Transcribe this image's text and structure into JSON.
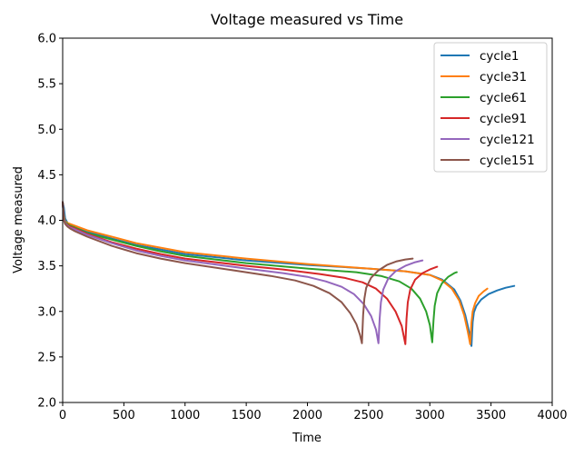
{
  "chart_data": {
    "type": "line",
    "title": "Voltage measured vs Time",
    "xlabel": "Time",
    "ylabel": "Voltage measured",
    "xlim": [
      0,
      4000
    ],
    "ylim": [
      2.0,
      6.0
    ],
    "xticks": [
      0,
      500,
      1000,
      1500,
      2000,
      2500,
      3000,
      3500,
      4000
    ],
    "xtick_labels": [
      "0",
      "500",
      "1000",
      "1500",
      "2000",
      "2500",
      "3000",
      "3500",
      "4000"
    ],
    "yticks": [
      2.0,
      2.5,
      3.0,
      3.5,
      4.0,
      4.5,
      5.0,
      5.5,
      6.0
    ],
    "ytick_labels": [
      "2.0",
      "2.5",
      "3.0",
      "3.5",
      "4.0",
      "4.5",
      "5.0",
      "5.5",
      "6.0"
    ],
    "grid": false,
    "legend_position": "top-right",
    "series": [
      {
        "name": "cycle1",
        "color": "#1f77b4",
        "x": [
          0,
          10,
          20,
          40,
          60,
          100,
          200,
          400,
          600,
          800,
          1000,
          1500,
          2000,
          2500,
          2800,
          3000,
          3100,
          3200,
          3250,
          3290,
          3320,
          3340,
          3350,
          3360,
          3380,
          3420,
          3480,
          3550,
          3620,
          3690
        ],
        "y": [
          4.2,
          4.14,
          4.02,
          3.97,
          3.95,
          3.93,
          3.88,
          3.8,
          3.73,
          3.68,
          3.63,
          3.56,
          3.51,
          3.47,
          3.44,
          3.4,
          3.35,
          3.24,
          3.12,
          2.96,
          2.78,
          2.62,
          2.88,
          2.99,
          3.06,
          3.13,
          3.19,
          3.23,
          3.26,
          3.28
        ]
      },
      {
        "name": "cycle31",
        "color": "#ff7f0e",
        "x": [
          0,
          10,
          20,
          40,
          60,
          100,
          200,
          400,
          600,
          800,
          1000,
          1500,
          2000,
          2500,
          2800,
          3000,
          3100,
          3180,
          3240,
          3280,
          3310,
          3330,
          3340,
          3350,
          3370,
          3400,
          3440,
          3470
        ],
        "y": [
          4.2,
          4.05,
          3.99,
          3.97,
          3.96,
          3.94,
          3.89,
          3.82,
          3.75,
          3.7,
          3.65,
          3.58,
          3.52,
          3.47,
          3.44,
          3.4,
          3.34,
          3.25,
          3.12,
          2.96,
          2.78,
          2.64,
          2.88,
          3.0,
          3.09,
          3.17,
          3.22,
          3.25
        ]
      },
      {
        "name": "cycle61",
        "color": "#2ca02c",
        "x": [
          0,
          10,
          20,
          40,
          60,
          100,
          200,
          400,
          600,
          800,
          1000,
          1500,
          2000,
          2400,
          2600,
          2750,
          2850,
          2920,
          2970,
          3000,
          3020,
          3030,
          3040,
          3060,
          3100,
          3150,
          3200,
          3220
        ],
        "y": [
          4.2,
          4.04,
          3.98,
          3.96,
          3.94,
          3.92,
          3.86,
          3.79,
          3.72,
          3.66,
          3.61,
          3.53,
          3.47,
          3.43,
          3.39,
          3.33,
          3.25,
          3.14,
          3.0,
          2.85,
          2.66,
          2.9,
          3.06,
          3.2,
          3.31,
          3.38,
          3.42,
          3.43
        ]
      },
      {
        "name": "cycle91",
        "color": "#d62728",
        "x": [
          0,
          10,
          20,
          40,
          60,
          100,
          200,
          400,
          600,
          800,
          1000,
          1500,
          1800,
          2100,
          2300,
          2450,
          2560,
          2650,
          2720,
          2770,
          2800,
          2810,
          2820,
          2840,
          2880,
          2940,
          3000,
          3060
        ],
        "y": [
          4.2,
          4.02,
          3.97,
          3.95,
          3.93,
          3.91,
          3.85,
          3.76,
          3.69,
          3.63,
          3.58,
          3.5,
          3.46,
          3.41,
          3.37,
          3.32,
          3.25,
          3.14,
          3.0,
          2.84,
          2.64,
          2.92,
          3.1,
          3.24,
          3.35,
          3.42,
          3.46,
          3.49
        ]
      },
      {
        "name": "cycle121",
        "color": "#9467bd",
        "x": [
          0,
          10,
          20,
          40,
          60,
          100,
          200,
          400,
          600,
          800,
          1000,
          1500,
          1800,
          2000,
          2150,
          2280,
          2380,
          2460,
          2520,
          2560,
          2580,
          2590,
          2600,
          2620,
          2660,
          2720,
          2800,
          2880,
          2940
        ],
        "y": [
          4.2,
          4.02,
          3.97,
          3.94,
          3.92,
          3.9,
          3.84,
          3.75,
          3.67,
          3.61,
          3.56,
          3.47,
          3.42,
          3.38,
          3.33,
          3.27,
          3.19,
          3.08,
          2.95,
          2.8,
          2.65,
          2.92,
          3.1,
          3.24,
          3.36,
          3.44,
          3.5,
          3.54,
          3.56
        ]
      },
      {
        "name": "cycle151",
        "color": "#8c564b",
        "x": [
          0,
          10,
          20,
          40,
          60,
          100,
          200,
          400,
          600,
          800,
          1000,
          1400,
          1700,
          1900,
          2050,
          2180,
          2280,
          2350,
          2400,
          2430,
          2445,
          2455,
          2465,
          2480,
          2520,
          2580,
          2650,
          2730,
          2800,
          2860
        ],
        "y": [
          4.2,
          4.0,
          3.96,
          3.93,
          3.91,
          3.88,
          3.82,
          3.72,
          3.64,
          3.58,
          3.53,
          3.45,
          3.39,
          3.34,
          3.28,
          3.2,
          3.1,
          2.98,
          2.86,
          2.74,
          2.65,
          2.96,
          3.14,
          3.26,
          3.37,
          3.45,
          3.51,
          3.55,
          3.57,
          3.58
        ]
      }
    ]
  }
}
